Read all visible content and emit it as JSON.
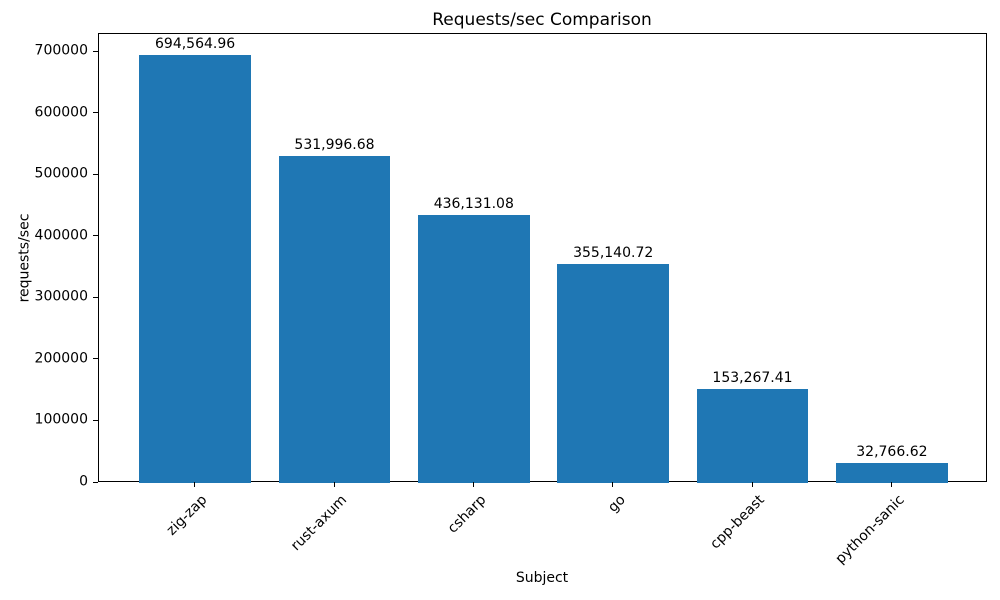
{
  "chart_data": {
    "type": "bar",
    "title": "Requests/sec Comparison",
    "xlabel": "Subject",
    "ylabel": "requests/sec",
    "categories": [
      "zig-zap",
      "rust-axum",
      "csharp",
      "go",
      "cpp-beast",
      "python-sanic"
    ],
    "values": [
      694564.96,
      531996.68,
      436131.08,
      355140.72,
      153267.41,
      32766.62
    ],
    "value_labels": [
      "694,564.96",
      "531,996.68",
      "436,131.08",
      "355,140.72",
      "153,267.41",
      "32,766.62"
    ],
    "bar_color": "#1f77b4",
    "background_color": "#ffffff",
    "text_color": "#000000",
    "ylim": [
      0,
      729293
    ],
    "yticks": [
      0,
      100000,
      200000,
      300000,
      400000,
      500000,
      600000,
      700000
    ],
    "ytick_labels": [
      "0",
      "100000",
      "200000",
      "300000",
      "400000",
      "500000",
      "600000",
      "700000"
    ],
    "x_tick_rotation_deg": 45,
    "grid": false,
    "legend": null
  }
}
